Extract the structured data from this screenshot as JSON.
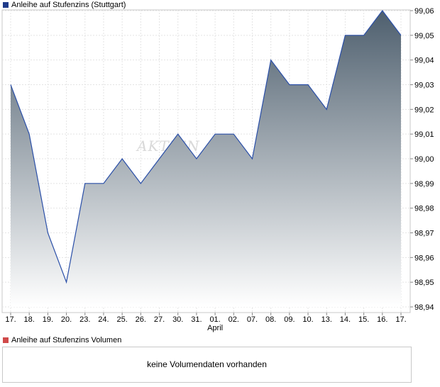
{
  "price_legend": {
    "label": "Anleihe auf Stufenzins (Stuttgart)",
    "color": "#1f3b8a"
  },
  "volume_legend": {
    "label": "Anleihe auf Stufenzins Volumen",
    "color": "#d04a4a"
  },
  "volume_message": "keine Volumendaten vorhanden",
  "watermark": "AKTIEN",
  "chart_data": {
    "type": "area",
    "x": [
      "17.",
      "18.",
      "19.",
      "20.",
      "23.",
      "24.",
      "25.",
      "26.",
      "27.",
      "30.",
      "31.",
      "01.",
      "02.",
      "07.",
      "08.",
      "09.",
      "10.",
      "13.",
      "14.",
      "15.",
      "16.",
      "17."
    ],
    "month_label": {
      "text": "April",
      "at_index": 11
    },
    "series": [
      {
        "values": [
          99.03,
          99.01,
          98.97,
          98.95,
          98.99,
          98.99,
          99.0,
          98.99,
          99.0,
          99.01,
          99.0,
          99.01,
          99.01,
          99.0,
          99.04,
          99.03,
          99.03,
          99.02,
          99.05,
          99.05,
          99.06,
          99.05
        ]
      }
    ],
    "y_ticks": [
      "98,94",
      "98,95",
      "98,96",
      "98,97",
      "98,98",
      "98,99",
      "99,00",
      "99,01",
      "99,02",
      "99,03",
      "99,04",
      "99,05",
      "99,06"
    ],
    "ylim": [
      98.94,
      99.06
    ],
    "y_axis_position": "right",
    "grid": true,
    "line_color": "#2a4fa8",
    "fill_top_color": "#4e5f6e",
    "fill_bottom_color": "#ffffff"
  }
}
